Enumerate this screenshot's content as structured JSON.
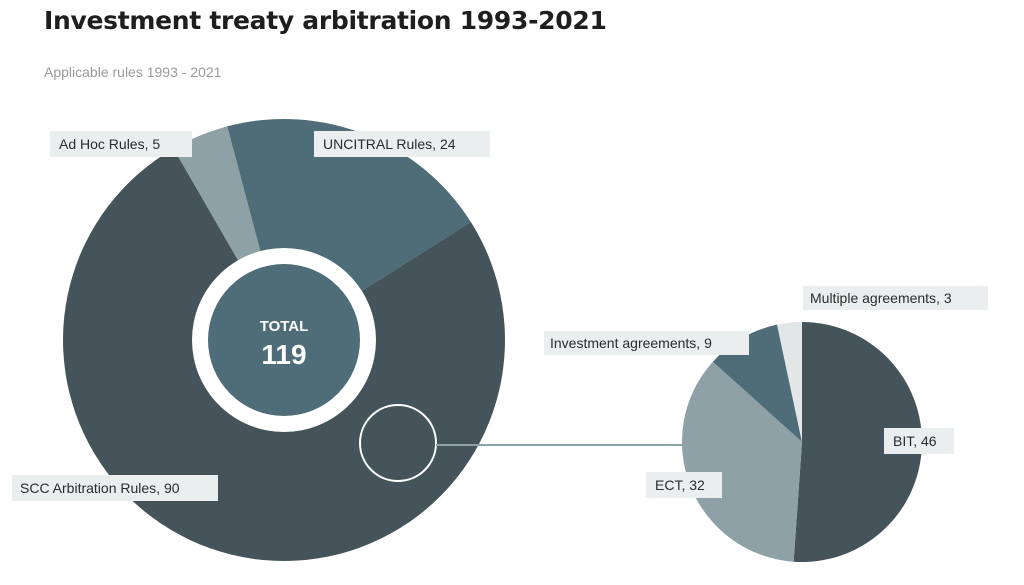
{
  "title": "Investment treaty arbitration 1993-2021",
  "subtitle": "Applicable rules 1993 - 2021",
  "colors": {
    "dark": "#45545a",
    "teal": "#4e6d78",
    "light": "#8ea1a7",
    "lightest": "#e2e6e7",
    "centerFill": "#4e6d78"
  },
  "chart_data": [
    {
      "type": "pie",
      "variant": "donut",
      "center_label": "TOTAL",
      "center_value": "119",
      "slices": [
        {
          "label": "Ad Hoc Rules",
          "value": 5,
          "display": "Ad Hoc Rules, 5",
          "color": "#8ea1a7"
        },
        {
          "label": "UNCITRAL Rules",
          "value": 24,
          "display": "UNCITRAL Rules, 24",
          "color": "#4e6d78"
        },
        {
          "label": "SCC Arbitration Rules",
          "value": 90,
          "display": "SCC Arbitration Rules, 90",
          "color": "#45545a"
        }
      ]
    },
    {
      "type": "pie",
      "breakdown_of": "SCC Arbitration Rules",
      "slices": [
        {
          "label": "BIT",
          "value": 46,
          "display": "BIT, 46",
          "color": "#45545a"
        },
        {
          "label": "ECT",
          "value": 32,
          "display": "ECT, 32",
          "color": "#8ea1a7"
        },
        {
          "label": "Investment agreements",
          "value": 9,
          "display": "Investment agreements, 9",
          "color": "#4e6d78"
        },
        {
          "label": "Multiple agreements",
          "value": 3,
          "display": "Multiple agreements, 3",
          "color": "#e2e6e7"
        }
      ]
    }
  ]
}
